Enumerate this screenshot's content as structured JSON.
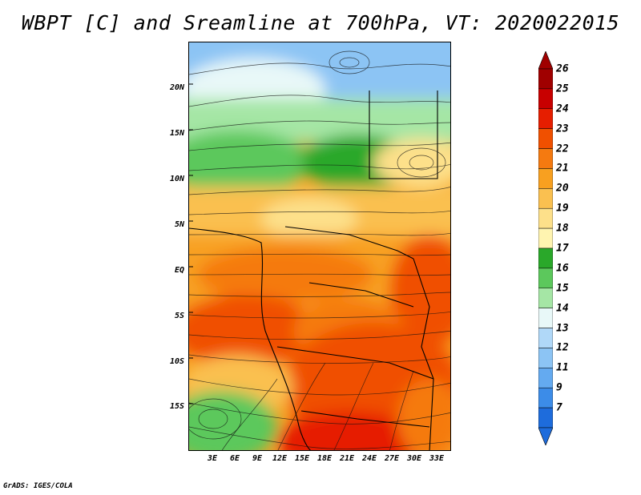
{
  "title": "WBPT [C] and Sreamline at 700hPa, VT: 2020022015",
  "credit": "GrADS: IGES/COLA",
  "map": {
    "variable": "Wet-bulb potential temperature (shaded) with 700 hPa streamlines",
    "lat_labels": [
      "20N",
      "15N",
      "10N",
      "5N",
      "EQ",
      "5S",
      "10S",
      "15S"
    ],
    "lon_labels": [
      "3E",
      "6E",
      "9E",
      "12E",
      "15E",
      "18E",
      "21E",
      "24E",
      "27E",
      "30E",
      "33E"
    ]
  },
  "colorbar": {
    "labels": [
      "26",
      "25",
      "24",
      "23",
      "22",
      "21",
      "20",
      "19",
      "18",
      "17",
      "16",
      "15",
      "14",
      "13",
      "12",
      "11",
      "9",
      "7"
    ],
    "colors": [
      "#a00000",
      "#c80000",
      "#e61e00",
      "#f05000",
      "#f57a10",
      "#f8a020",
      "#fac050",
      "#fde08a",
      "#fff4b0",
      "#2aa82a",
      "#5cc85c",
      "#a5e6a5",
      "#e8f8f8",
      "#b0d8f8",
      "#8cc4f4",
      "#64aaf0",
      "#3c8ce8",
      "#1e6cdc"
    ],
    "top_cap_color": "#a00000",
    "bottom_cap_color": "#1e6cdc"
  }
}
